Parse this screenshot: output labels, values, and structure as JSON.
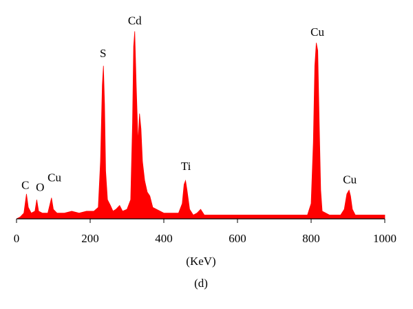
{
  "chart_data": {
    "type": "area",
    "x_label": "(KeV)",
    "caption": "(d)",
    "color": "#ff0000",
    "x": [
      0,
      10,
      20,
      27,
      32,
      40,
      50,
      55,
      60,
      70,
      85,
      95,
      100,
      110,
      130,
      150,
      170,
      190,
      210,
      222,
      228,
      233,
      236,
      239,
      242,
      247,
      255,
      262,
      270,
      280,
      288,
      300,
      310,
      315,
      318,
      321,
      325,
      330,
      334,
      338,
      342,
      348,
      355,
      362,
      370,
      380,
      390,
      400,
      420,
      440,
      450,
      455,
      459,
      463,
      470,
      480,
      490,
      500,
      510,
      550,
      600,
      650,
      700,
      750,
      790,
      800,
      806,
      810,
      814,
      818,
      822,
      826,
      830,
      850,
      880,
      890,
      897,
      903,
      907,
      912,
      920,
      950,
      1000
    ],
    "values": [
      0,
      1,
      3,
      13,
      6,
      3,
      4,
      10,
      4,
      3,
      3,
      11,
      5,
      3,
      3,
      4,
      3,
      4,
      4,
      6,
      30,
      70,
      80,
      60,
      25,
      10,
      7,
      4,
      5,
      7,
      4,
      5,
      10,
      50,
      90,
      98,
      70,
      40,
      55,
      47,
      30,
      20,
      14,
      12,
      6,
      5,
      4,
      3,
      3,
      3,
      8,
      18,
      20,
      15,
      5,
      2,
      3,
      5,
      2,
      2,
      2,
      2,
      2,
      2,
      2,
      8,
      40,
      80,
      92,
      88,
      50,
      15,
      4,
      2,
      2,
      5,
      13,
      15,
      12,
      5,
      2,
      2,
      2
    ],
    "xlim": [
      0,
      1000
    ],
    "xticks": [
      0,
      200,
      400,
      600,
      800,
      1000
    ],
    "ylim": [
      0,
      100
    ],
    "annotations": [
      {
        "text": "C",
        "x": 24,
        "y": 17
      },
      {
        "text": "O",
        "x": 64,
        "y": 16
      },
      {
        "text": "Cu",
        "x": 103,
        "y": 21
      },
      {
        "text": "S",
        "x": 235,
        "y": 86
      },
      {
        "text": "Cd",
        "x": 321,
        "y": 103
      },
      {
        "text": "Ti",
        "x": 460,
        "y": 27
      },
      {
        "text": "Cu",
        "x": 817,
        "y": 97
      },
      {
        "text": "Cu",
        "x": 905,
        "y": 20
      }
    ]
  }
}
